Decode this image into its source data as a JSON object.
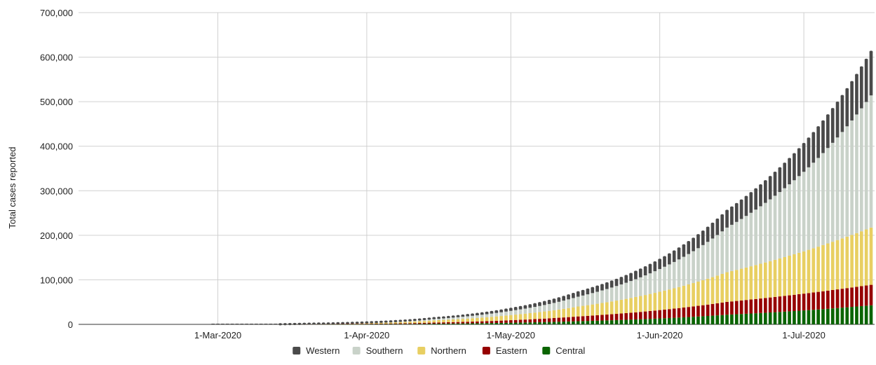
{
  "chart_data": {
    "type": "bar",
    "stacked": true,
    "title": "",
    "xlabel": "",
    "ylabel": "Total cases reported",
    "ylim": [
      0,
      700000
    ],
    "yticks": [
      "0",
      "100,000",
      "200,000",
      "300,000",
      "400,000",
      "500,000",
      "600,000",
      "700,000"
    ],
    "xticks": [
      "1-Mar-2020",
      "1-Apr-2020",
      "1-May-2020",
      "1-Jun-2020",
      "1-Jul-2020"
    ],
    "x_range": [
      "2020-02-01",
      "2020-07-15"
    ],
    "grid": true,
    "legend_position": "bottom",
    "series_order_bottom_to_top": [
      "Central",
      "Eastern",
      "Northern",
      "Southern",
      "Western"
    ],
    "legend": [
      {
        "name": "Western",
        "color": "#4a4a4a"
      },
      {
        "name": "Southern",
        "color": "#c9d2c9"
      },
      {
        "name": "Northern",
        "color": "#e8cf62"
      },
      {
        "name": "Eastern",
        "color": "#960000"
      },
      {
        "name": "Central",
        "color": "#0a6400"
      }
    ],
    "total_checkpoints": [
      {
        "date": "2020-03-13",
        "total": 0
      },
      {
        "date": "2020-03-20",
        "total": 1500
      },
      {
        "date": "2020-04-01",
        "total": 4500
      },
      {
        "date": "2020-04-15",
        "total": 14000
      },
      {
        "date": "2020-05-01",
        "total": 35000
      },
      {
        "date": "2020-05-15",
        "total": 72000
      },
      {
        "date": "2020-06-01",
        "total": 145000
      },
      {
        "date": "2020-06-15",
        "total": 255000
      },
      {
        "date": "2020-07-01",
        "total": 405000
      },
      {
        "date": "2020-07-15",
        "total": 612000
      }
    ],
    "share_at_end": {
      "Central": 0.07,
      "Eastern": 0.075,
      "Northern": 0.21,
      "Southern": 0.485,
      "Western": 0.16
    }
  }
}
